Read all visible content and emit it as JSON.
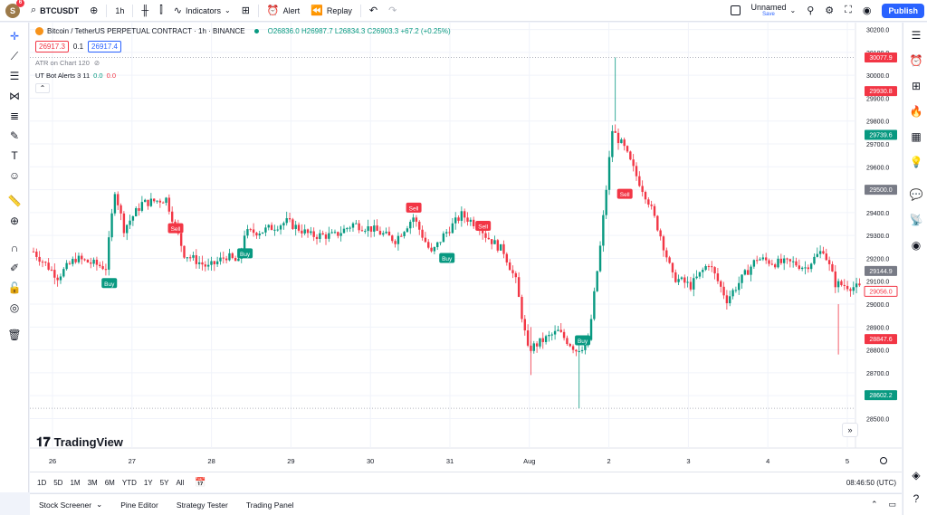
{
  "topbar": {
    "avatar_letter": "S",
    "avatar_badge": "6",
    "symbol": "BTCUSDT",
    "interval": "1h",
    "indicators_label": "Indicators",
    "alert_label": "Alert",
    "replay_label": "Replay",
    "layout_name": "Unnamed",
    "save_label": "Save",
    "publish_label": "Publish"
  },
  "legend": {
    "title": "Bitcoin / TetherUS PERPETUAL CONTRACT · 1h · BINANCE",
    "o_label": "O",
    "o": "26836.0",
    "h_label": "H",
    "h": "26987.7",
    "l_label": "L",
    "l": "26834.3",
    "c_label": "C",
    "c": "26903.3",
    "change": "+67.2 (+0.25%)",
    "sell_price": "26917.3",
    "spread": "0.1",
    "buy_price": "26917.4"
  },
  "indicators": {
    "atr": "ATR on Chart 120",
    "ut_name": "UT Bot Alerts 3 11",
    "ut_v1": "0.0",
    "ut_v2": "0.0"
  },
  "branding": {
    "logo_text": "TradingView"
  },
  "range_bar": {
    "ranges": [
      "1D",
      "5D",
      "1M",
      "3M",
      "6M",
      "YTD",
      "1Y",
      "5Y",
      "All"
    ],
    "time": "08:46:50 (UTC)"
  },
  "bottom_tabs": [
    "Stock Screener",
    "Pine Editor",
    "Strategy Tester",
    "Trading Panel"
  ],
  "colors": {
    "up": "#089981",
    "down": "#f23645",
    "accent": "#2962ff"
  },
  "chart_data": {
    "type": "candlestick",
    "y_axis": {
      "ticks": [
        "30200.0",
        "30100.0",
        "30000.0",
        "29900.0",
        "29800.0",
        "29700.0",
        "29600.0",
        "29500.0",
        "29400.0",
        "29300.0",
        "29200.0",
        "29100.0",
        "29000.0",
        "28900.0",
        "28800.0",
        "28700.0",
        "28600.0",
        "28500.0"
      ],
      "ylim": [
        28490,
        30230
      ]
    },
    "x_axis": {
      "ticks": [
        "26",
        "27",
        "28",
        "29",
        "30",
        "31",
        "Aug",
        "2",
        "3",
        "4",
        "5"
      ]
    },
    "price_labels": [
      {
        "value": 30077.9,
        "text": "30077.9",
        "color": "#f23645"
      },
      {
        "value": 29930.8,
        "text": "29930.8",
        "color": "#f23645"
      },
      {
        "value": 29739.6,
        "text": "29739.6",
        "color": "#089981"
      },
      {
        "value": 29500.0,
        "text": "29500.0",
        "color": "#787b86"
      },
      {
        "value": 29144.9,
        "text": "29144.9",
        "color": "#787b86"
      },
      {
        "value": 29056.0,
        "text": "29056.0",
        "color": "#f23645",
        "outline": true
      },
      {
        "value": 28847.6,
        "text": "28847.6",
        "color": "#f23645"
      },
      {
        "value": 28602.2,
        "text": "28602.2",
        "color": "#089981"
      }
    ],
    "signals": [
      {
        "type": "Buy",
        "bar": 25,
        "value": 29090
      },
      {
        "type": "Sell",
        "bar": 47,
        "value": 29330
      },
      {
        "type": "Buy",
        "bar": 70,
        "value": 29220
      },
      {
        "type": "Sell",
        "bar": 126,
        "value": 29420
      },
      {
        "type": "Buy",
        "bar": 137,
        "value": 29200
      },
      {
        "type": "Sell",
        "bar": 149,
        "value": 29340
      },
      {
        "type": "Buy",
        "bar": 182,
        "value": 28840
      },
      {
        "type": "Sell",
        "bar": 196,
        "value": 29480
      }
    ],
    "dotted_levels": [
      30077.9,
      28545
    ]
  }
}
